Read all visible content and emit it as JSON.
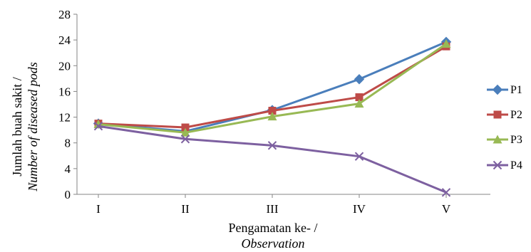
{
  "chart_data": {
    "type": "line",
    "categories": [
      "I",
      "II",
      "III",
      "IV",
      "V"
    ],
    "xlabel_line1": "Pengamatan ke- /",
    "xlabel_line2": "Observation",
    "ylabel_line1": "Jumlah buah sakit /",
    "ylabel_line2": "Number of diseased pods",
    "ylim": [
      0,
      28
    ],
    "yticks": [
      0,
      4,
      8,
      12,
      16,
      20,
      24,
      28
    ],
    "legend_position": "right",
    "series": [
      {
        "name": "P1",
        "color": "#4a7ebb",
        "marker": "diamond",
        "values": [
          11.0,
          9.8,
          13.1,
          17.9,
          23.7
        ]
      },
      {
        "name": "P2",
        "color": "#be4b48",
        "marker": "square",
        "values": [
          11.0,
          10.4,
          13.0,
          15.1,
          23.0
        ]
      },
      {
        "name": "P3",
        "color": "#98b954",
        "marker": "triangle",
        "values": [
          10.9,
          9.6,
          12.1,
          14.1,
          23.4
        ]
      },
      {
        "name": "P4",
        "color": "#7d60a0",
        "marker": "x",
        "values": [
          10.6,
          8.6,
          7.6,
          5.9,
          0.3
        ]
      }
    ]
  }
}
